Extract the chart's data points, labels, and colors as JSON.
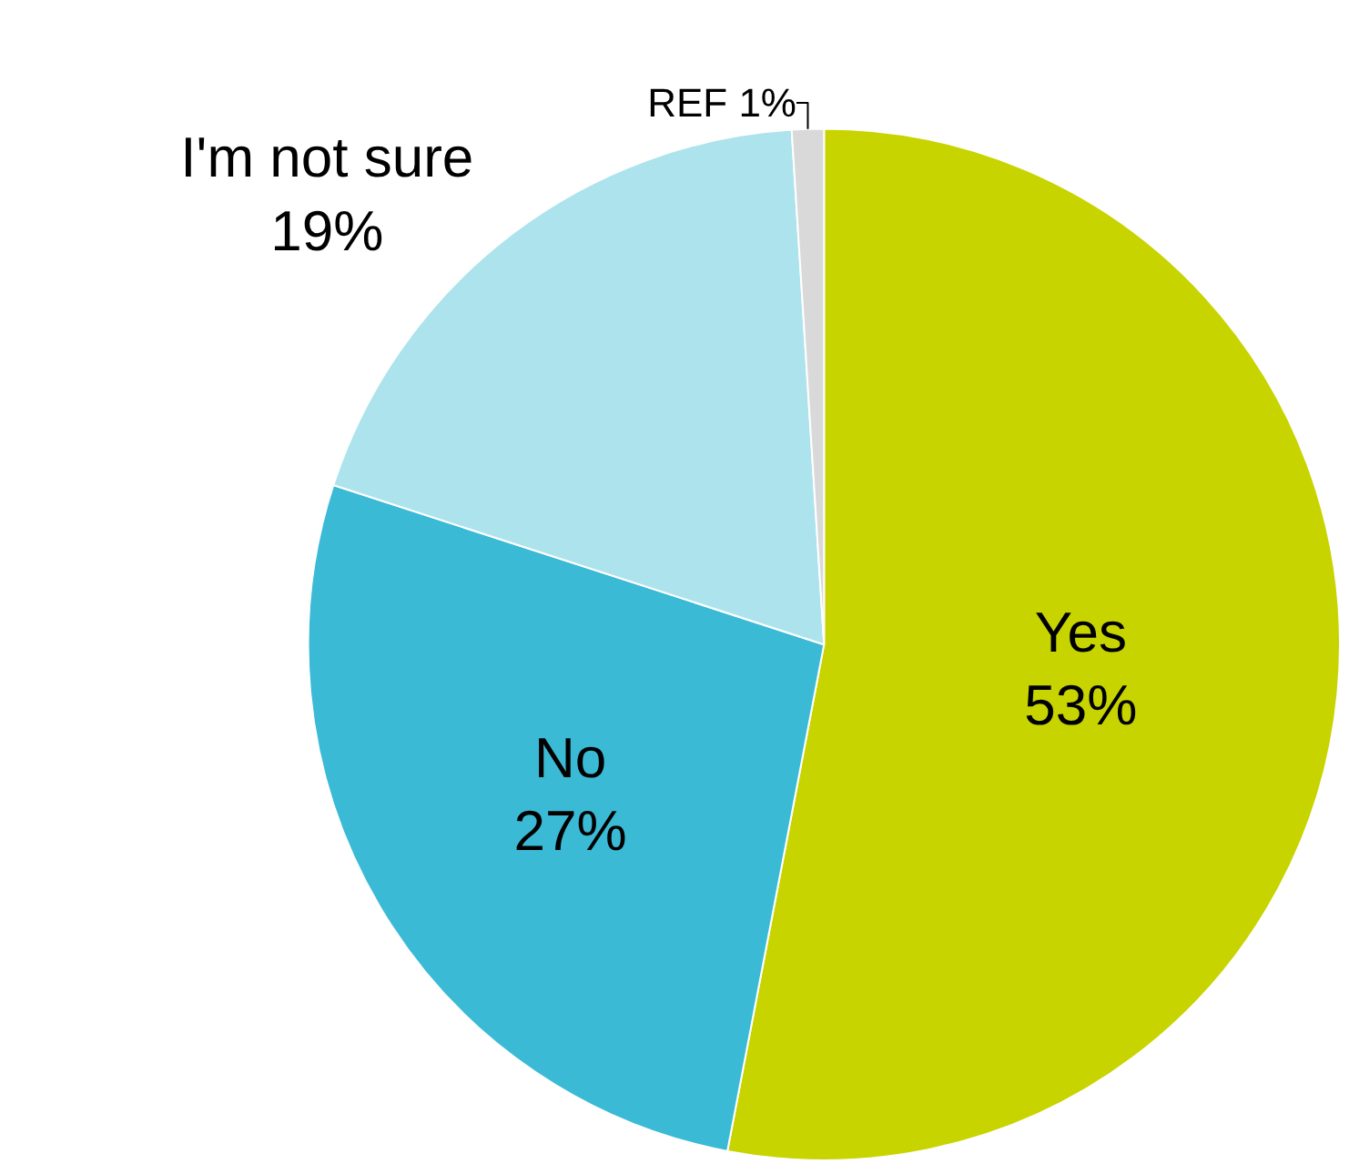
{
  "chart_data": {
    "type": "pie",
    "categories": [
      "Yes",
      "No",
      "I'm not sure",
      "REF"
    ],
    "values": [
      53,
      27,
      19,
      1
    ],
    "value_labels": [
      "53%",
      "27%",
      "19%",
      "1%"
    ],
    "colors": [
      "#c8d400",
      "#3bbad6",
      "#ade3ed",
      "#d9d9d9"
    ],
    "legend": false
  }
}
